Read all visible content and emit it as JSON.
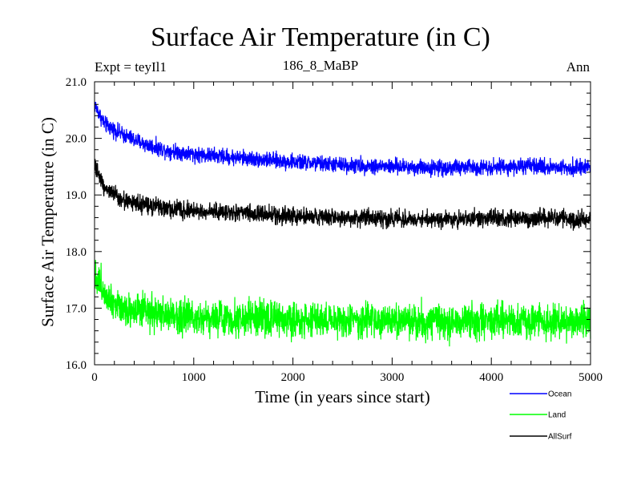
{
  "chart_data": {
    "type": "line",
    "title": "Surface Air Temperature (in C)",
    "expt_label": "Expt = teyIl1",
    "subtitle": "186_8_MaBP",
    "season": "Ann",
    "xlabel": "Time (in years since start)",
    "ylabel": "Surface Air Temperature (in C)",
    "xlim": [
      0,
      5000
    ],
    "ylim": [
      16.0,
      21.0
    ],
    "xticks": [
      0,
      1000,
      2000,
      3000,
      4000,
      5000
    ],
    "xtick_labels": [
      "0",
      "1000",
      "2000",
      "3000",
      "4000",
      "5000"
    ],
    "yticks": [
      16.0,
      17.0,
      18.0,
      19.0,
      20.0,
      21.0
    ],
    "ytick_labels": [
      "16.0",
      "17.0",
      "18.0",
      "19.0",
      "20.0",
      "21.0"
    ],
    "legend_position": "bottom-right, outside plot",
    "series": [
      {
        "name": "Ocean",
        "color": "#0000ff",
        "noise_amplitude": 0.1,
        "values": [
          [
            0,
            20.6
          ],
          [
            100,
            20.25
          ],
          [
            200,
            20.15
          ],
          [
            300,
            20.05
          ],
          [
            500,
            19.9
          ],
          [
            700,
            19.8
          ],
          [
            1000,
            19.72
          ],
          [
            1500,
            19.65
          ],
          [
            2000,
            19.58
          ],
          [
            2500,
            19.53
          ],
          [
            3000,
            19.5
          ],
          [
            3500,
            19.48
          ],
          [
            4000,
            19.5
          ],
          [
            4500,
            19.5
          ],
          [
            5000,
            19.48
          ]
        ]
      },
      {
        "name": "Land",
        "color": "#00ff00",
        "noise_amplitude": 0.22,
        "values": [
          [
            0,
            17.6
          ],
          [
            100,
            17.3
          ],
          [
            200,
            17.1
          ],
          [
            300,
            17.0
          ],
          [
            500,
            16.92
          ],
          [
            700,
            16.88
          ],
          [
            1000,
            16.85
          ],
          [
            1500,
            16.82
          ],
          [
            2000,
            16.8
          ],
          [
            2500,
            16.78
          ],
          [
            3000,
            16.77
          ],
          [
            3500,
            16.76
          ],
          [
            4000,
            16.77
          ],
          [
            4500,
            16.78
          ],
          [
            5000,
            16.75
          ]
        ]
      },
      {
        "name": "AllSurf",
        "color": "#000000",
        "noise_amplitude": 0.11,
        "values": [
          [
            0,
            19.5
          ],
          [
            100,
            19.15
          ],
          [
            200,
            19.0
          ],
          [
            300,
            18.9
          ],
          [
            500,
            18.82
          ],
          [
            700,
            18.76
          ],
          [
            1000,
            18.72
          ],
          [
            1500,
            18.68
          ],
          [
            2000,
            18.63
          ],
          [
            2500,
            18.6
          ],
          [
            3000,
            18.58
          ],
          [
            3500,
            18.57
          ],
          [
            4000,
            18.58
          ],
          [
            4500,
            18.59
          ],
          [
            5000,
            18.57
          ]
        ]
      }
    ]
  }
}
